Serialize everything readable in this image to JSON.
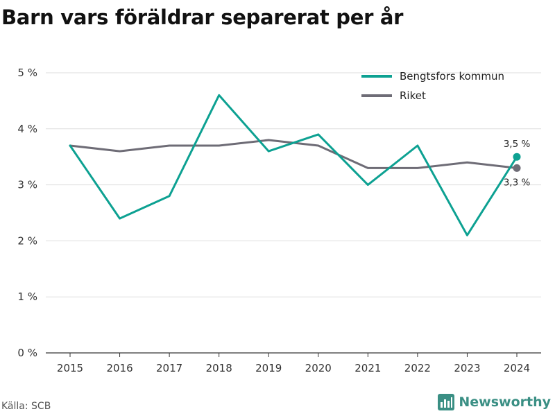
{
  "title": "Barn vars föräldrar separerat per år",
  "source": "Källa: SCB",
  "brand": {
    "name": "Newsworthy",
    "icon": "bar-chart-icon",
    "color": "#3a8f84"
  },
  "chart_data": {
    "type": "line",
    "categories": [
      "2015",
      "2016",
      "2017",
      "2018",
      "2019",
      "2020",
      "2021",
      "2022",
      "2023",
      "2024"
    ],
    "ylim": [
      0,
      5
    ],
    "y_ticks": [
      0,
      1,
      2,
      3,
      4,
      5
    ],
    "y_tick_labels": [
      "0 %",
      "1 %",
      "2 %",
      "3 %",
      "4 %",
      "5 %"
    ],
    "grid": "horizontal",
    "legend_position": "top-right",
    "series": [
      {
        "name": "Bengtsfors kommun",
        "color": "#0da192",
        "values": [
          3.7,
          2.4,
          2.8,
          4.6,
          3.6,
          3.9,
          3.0,
          3.7,
          2.1,
          3.5
        ],
        "end_label": "3,5 %"
      },
      {
        "name": "Riket",
        "color": "#6e6c76",
        "values": [
          3.7,
          3.6,
          3.7,
          3.7,
          3.8,
          3.7,
          3.3,
          3.3,
          3.4,
          3.3
        ],
        "end_label": "3,3 %"
      }
    ]
  }
}
